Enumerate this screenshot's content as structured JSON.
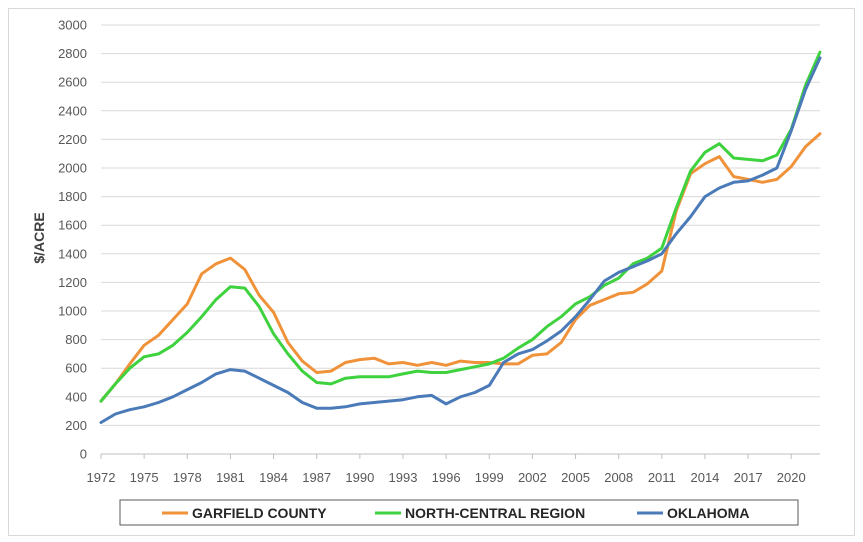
{
  "chart_data": {
    "type": "line",
    "title": "",
    "xlabel": "",
    "ylabel": "$/ACRE",
    "xlim": [
      1972,
      2022
    ],
    "ylim": [
      0,
      3000
    ],
    "y_ticks": [
      0,
      200,
      400,
      600,
      800,
      1000,
      1200,
      1400,
      1600,
      1800,
      2000,
      2200,
      2400,
      2600,
      2800,
      3000
    ],
    "x_ticks": [
      1972,
      1975,
      1978,
      1981,
      1984,
      1987,
      1990,
      1993,
      1996,
      1999,
      2002,
      2005,
      2008,
      2011,
      2014,
      2017,
      2020
    ],
    "grid": "horizontal",
    "legend_position": "bottom",
    "x": [
      1972,
      1973,
      1974,
      1975,
      1976,
      1977,
      1978,
      1979,
      1980,
      1981,
      1982,
      1983,
      1984,
      1985,
      1986,
      1987,
      1988,
      1989,
      1990,
      1991,
      1992,
      1993,
      1994,
      1995,
      1996,
      1997,
      1998,
      1999,
      2000,
      2001,
      2002,
      2003,
      2004,
      2005,
      2006,
      2007,
      2008,
      2009,
      2010,
      2011,
      2012,
      2013,
      2014,
      2015,
      2016,
      2017,
      2018,
      2019,
      2020,
      2021,
      2022
    ],
    "series": [
      {
        "name": "GARFIELD COUNTY",
        "color": "#f0923a",
        "values": [
          370,
          490,
          630,
          760,
          830,
          940,
          1050,
          1260,
          1330,
          1370,
          1290,
          1110,
          990,
          780,
          650,
          570,
          580,
          640,
          660,
          670,
          630,
          640,
          620,
          640,
          620,
          650,
          640,
          640,
          630,
          630,
          690,
          700,
          780,
          940,
          1040,
          1080,
          1120,
          1130,
          1190,
          1280,
          1700,
          1960,
          2030,
          2080,
          1940,
          1920,
          1900,
          1920,
          2010,
          2150,
          2240
        ]
      },
      {
        "name": "NORTH-CENTRAL REGION",
        "color": "#3fd23f",
        "values": [
          370,
          490,
          600,
          680,
          700,
          760,
          850,
          960,
          1080,
          1170,
          1160,
          1030,
          840,
          700,
          580,
          500,
          490,
          530,
          540,
          540,
          540,
          560,
          580,
          570,
          570,
          590,
          610,
          630,
          670,
          740,
          800,
          890,
          960,
          1050,
          1100,
          1180,
          1230,
          1330,
          1370,
          1440,
          1720,
          1980,
          2110,
          2170,
          2070,
          2060,
          2050,
          2090,
          2270,
          2580,
          2810
        ]
      },
      {
        "name": "OKLAHOMA",
        "color": "#4a7ab8",
        "values": [
          220,
          280,
          310,
          330,
          360,
          400,
          450,
          500,
          560,
          590,
          580,
          530,
          480,
          430,
          360,
          320,
          320,
          330,
          350,
          360,
          370,
          380,
          400,
          410,
          350,
          400,
          430,
          480,
          640,
          700,
          730,
          790,
          860,
          960,
          1080,
          1210,
          1270,
          1310,
          1350,
          1400,
          1540,
          1660,
          1800,
          1860,
          1900,
          1910,
          1950,
          2000,
          2260,
          2550,
          2770
        ]
      }
    ]
  }
}
